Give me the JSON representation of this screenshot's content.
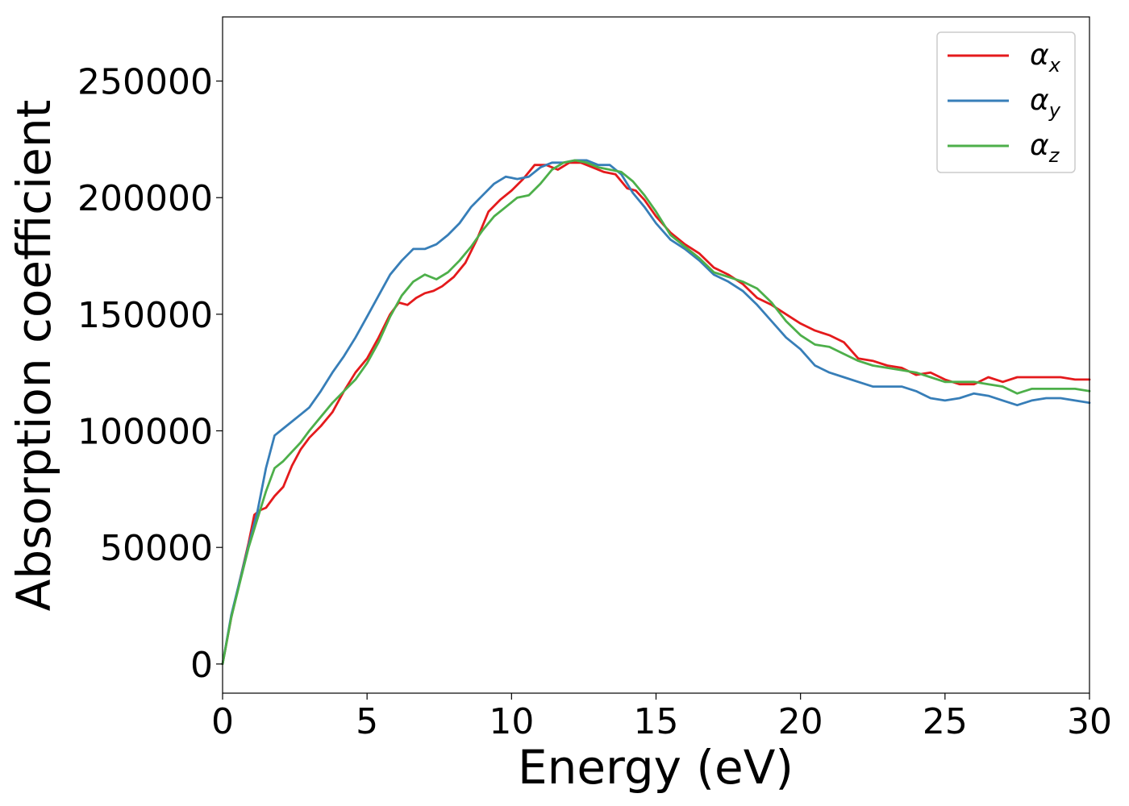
{
  "chart_data": {
    "type": "line",
    "title": "",
    "xlabel": "Energy (eV)",
    "ylabel": "Absorption coefficient",
    "xlim": [
      0,
      30
    ],
    "ylim": [
      -12500,
      277500
    ],
    "xticks": [
      0,
      5,
      10,
      15,
      20,
      25,
      30
    ],
    "yticks": [
      0,
      50000,
      100000,
      150000,
      200000,
      250000
    ],
    "grid": false,
    "legend_position": "top-right",
    "series": [
      {
        "name": "α",
        "subscript": "x",
        "color": "#e41a1c",
        "x": [
          0,
          0.3,
          0.6,
          0.9,
          1.1,
          1.3,
          1.5,
          1.8,
          2.1,
          2.4,
          2.7,
          3.0,
          3.4,
          3.8,
          4.2,
          4.6,
          5.0,
          5.4,
          5.8,
          6.1,
          6.4,
          6.7,
          7.0,
          7.3,
          7.6,
          8.0,
          8.4,
          8.8,
          9.2,
          9.6,
          10.0,
          10.4,
          10.8,
          11.2,
          11.6,
          12.0,
          12.4,
          12.8,
          13.2,
          13.6,
          14.0,
          14.3,
          14.6,
          15.0,
          15.5,
          16.0,
          16.5,
          17.0,
          17.5,
          18.0,
          18.5,
          19.0,
          19.5,
          20.0,
          20.5,
          21.0,
          21.5,
          22.0,
          22.5,
          23.0,
          23.5,
          24.0,
          24.5,
          25.0,
          25.5,
          26.0,
          26.5,
          27.0,
          27.5,
          28.0,
          28.5,
          29.0,
          29.5,
          30.0
        ],
        "values": [
          0,
          20000,
          36000,
          52000,
          64000,
          66000,
          67000,
          72000,
          76000,
          85000,
          92000,
          97000,
          102000,
          108000,
          117000,
          125000,
          131000,
          140000,
          150000,
          155000,
          154000,
          157000,
          159000,
          160000,
          162000,
          166000,
          172000,
          182000,
          194000,
          199000,
          203000,
          208000,
          214000,
          214000,
          212000,
          215000,
          215000,
          213000,
          211000,
          210000,
          204000,
          203000,
          199000,
          192000,
          185000,
          180000,
          176000,
          170000,
          167000,
          163000,
          157000,
          154000,
          150000,
          146000,
          143000,
          141000,
          138000,
          131000,
          130000,
          128000,
          127000,
          124000,
          125000,
          122000,
          120000,
          120000,
          123000,
          121000,
          123000,
          123000,
          123000,
          123000,
          122000,
          122000
        ]
      },
      {
        "name": "α",
        "subscript": "y",
        "color": "#377eb8",
        "x": [
          0,
          0.3,
          0.6,
          0.9,
          1.2,
          1.5,
          1.8,
          2.1,
          2.4,
          2.7,
          3.0,
          3.4,
          3.8,
          4.2,
          4.6,
          5.0,
          5.4,
          5.8,
          6.2,
          6.6,
          7.0,
          7.4,
          7.8,
          8.2,
          8.6,
          9.0,
          9.4,
          9.8,
          10.2,
          10.6,
          11.0,
          11.4,
          11.8,
          12.2,
          12.6,
          13.0,
          13.4,
          13.8,
          14.2,
          14.6,
          15.0,
          15.5,
          16.0,
          16.5,
          17.0,
          17.5,
          18.0,
          18.5,
          19.0,
          19.5,
          20.0,
          20.5,
          21.0,
          21.5,
          22.0,
          22.5,
          23.0,
          23.5,
          24.0,
          24.5,
          25.0,
          25.5,
          26.0,
          26.5,
          27.0,
          27.5,
          28.0,
          28.5,
          29.0,
          29.5,
          30.0
        ],
        "values": [
          0,
          21000,
          36000,
          51000,
          65000,
          84000,
          98000,
          101000,
          104000,
          107000,
          110000,
          117000,
          125000,
          132000,
          140000,
          149000,
          158000,
          167000,
          173000,
          178000,
          178000,
          180000,
          184000,
          189000,
          196000,
          201000,
          206000,
          209000,
          208000,
          209000,
          213000,
          215000,
          215000,
          216000,
          216000,
          214000,
          214000,
          210000,
          202000,
          196000,
          189000,
          182000,
          178000,
          173000,
          167000,
          164000,
          160000,
          154000,
          147000,
          140000,
          135000,
          128000,
          125000,
          123000,
          121000,
          119000,
          119000,
          119000,
          117000,
          114000,
          113000,
          114000,
          116000,
          115000,
          113000,
          111000,
          113000,
          114000,
          114000,
          113000,
          112000
        ]
      },
      {
        "name": "α",
        "subscript": "z",
        "color": "#4daf4a",
        "x": [
          0,
          0.3,
          0.6,
          0.9,
          1.2,
          1.5,
          1.8,
          2.1,
          2.4,
          2.7,
          3.0,
          3.4,
          3.8,
          4.2,
          4.6,
          5.0,
          5.4,
          5.8,
          6.2,
          6.6,
          7.0,
          7.4,
          7.8,
          8.2,
          8.6,
          9.0,
          9.4,
          9.8,
          10.2,
          10.6,
          11.0,
          11.4,
          11.8,
          12.2,
          12.6,
          13.0,
          13.4,
          13.8,
          14.2,
          14.6,
          15.0,
          15.5,
          16.0,
          16.5,
          17.0,
          17.5,
          18.0,
          18.5,
          19.0,
          19.5,
          20.0,
          20.5,
          21.0,
          21.5,
          22.0,
          22.5,
          23.0,
          23.5,
          24.0,
          24.5,
          25.0,
          25.5,
          26.0,
          26.5,
          27.0,
          27.5,
          28.0,
          28.5,
          29.0,
          29.5,
          30.0
        ],
        "values": [
          0,
          20000,
          35000,
          50000,
          62000,
          74000,
          84000,
          87000,
          91000,
          95000,
          100000,
          106000,
          112000,
          117000,
          122000,
          129000,
          138000,
          149000,
          158000,
          164000,
          167000,
          165000,
          168000,
          173000,
          179000,
          186000,
          192000,
          196000,
          200000,
          201000,
          206000,
          212000,
          215000,
          216000,
          215000,
          213000,
          212000,
          211000,
          207000,
          201000,
          194000,
          184000,
          179000,
          174000,
          168000,
          166000,
          164000,
          161000,
          155000,
          147000,
          141000,
          137000,
          136000,
          133000,
          130000,
          128000,
          127000,
          126000,
          125000,
          123000,
          121000,
          121000,
          121000,
          120000,
          119000,
          116000,
          118000,
          118000,
          118000,
          118000,
          117000
        ]
      }
    ]
  }
}
